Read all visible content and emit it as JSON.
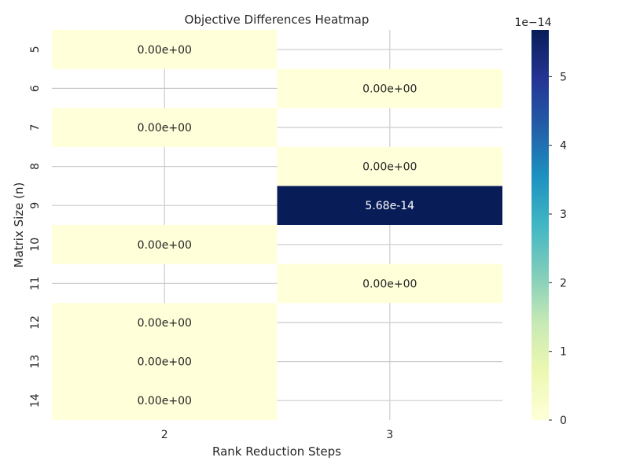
{
  "chart_data": {
    "type": "heatmap",
    "title": "Objective Differences Heatmap",
    "xlabel": "Rank Reduction Steps",
    "ylabel": "Matrix Size (n)",
    "x_categories": [
      "2",
      "3"
    ],
    "y_categories": [
      "5",
      "6",
      "7",
      "8",
      "9",
      "10",
      "11",
      "12",
      "13",
      "14"
    ],
    "cells": [
      {
        "row": "5",
        "col": "2",
        "value": 0.0,
        "label": "0.00e+00"
      },
      {
        "row": "6",
        "col": "3",
        "value": 0.0,
        "label": "0.00e+00"
      },
      {
        "row": "7",
        "col": "2",
        "value": 0.0,
        "label": "0.00e+00"
      },
      {
        "row": "8",
        "col": "3",
        "value": 0.0,
        "label": "0.00e+00"
      },
      {
        "row": "9",
        "col": "3",
        "value": 5.68e-14,
        "label": "5.68e-14"
      },
      {
        "row": "10",
        "col": "2",
        "value": 0.0,
        "label": "0.00e+00"
      },
      {
        "row": "11",
        "col": "3",
        "value": 0.0,
        "label": "0.00e+00"
      },
      {
        "row": "12",
        "col": "2",
        "value": 0.0,
        "label": "0.00e+00"
      },
      {
        "row": "13",
        "col": "2",
        "value": 0.0,
        "label": "0.00e+00"
      },
      {
        "row": "14",
        "col": "2",
        "value": 0.0,
        "label": "0.00e+00"
      }
    ],
    "colorbar": {
      "colormap": "YlGnBu",
      "range": [
        0,
        5.68e-14
      ],
      "ticks": [
        0,
        1,
        2,
        3,
        4,
        5
      ],
      "tick_labels": [
        "0",
        "1",
        "2",
        "3",
        "4",
        "5"
      ],
      "multiplier_label": "1e−14",
      "colors": [
        "#ffffd9",
        "#edf8b1",
        "#c7e9b4",
        "#7fcdbb",
        "#41b6c4",
        "#1d91c0",
        "#225ea8",
        "#253494",
        "#081d58"
      ]
    },
    "grid": true,
    "colors": {
      "grid": "#cccccc",
      "text": "#262626",
      "cell_text_dark": "#262626",
      "cell_text_light": "#ffffff"
    }
  }
}
